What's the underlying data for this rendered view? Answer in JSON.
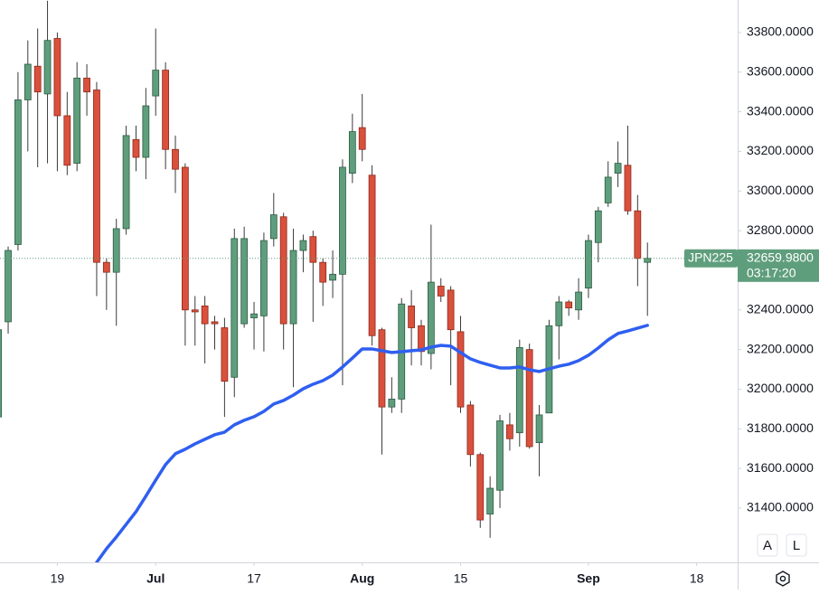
{
  "chart_data": {
    "type": "candlestick",
    "x": [
      -1,
      0,
      1,
      2,
      3,
      4,
      5,
      6,
      7,
      8,
      9,
      10,
      11,
      12,
      13,
      14,
      15,
      16,
      17,
      18,
      19,
      20,
      21,
      22,
      23,
      24,
      25,
      26,
      27,
      28,
      29,
      30,
      31,
      32,
      33,
      34,
      35,
      36,
      37,
      38,
      39,
      40,
      41,
      42,
      43,
      44,
      45,
      46,
      47,
      48,
      49,
      50,
      51,
      52,
      53,
      54,
      55,
      56,
      57,
      58,
      59,
      60,
      61,
      62,
      63,
      64,
      65
    ],
    "open": [
      31860,
      32340,
      32730,
      33460,
      33630,
      33490,
      33770,
      33380,
      33140,
      33570,
      33510,
      32640,
      32590,
      32810,
      33260,
      33170,
      33480,
      33610,
      33210,
      33120,
      32400,
      32420,
      32340,
      32310,
      32060,
      32330,
      32360,
      32370,
      32760,
      32870,
      32330,
      32700,
      32770,
      32640,
      32550,
      32580,
      33090,
      33320,
      33080,
      32300,
      31910,
      31950,
      32420,
      32320,
      32180,
      32520,
      32500,
      32290,
      31920,
      31670,
      31370,
      31490,
      31820,
      31780,
      32200,
      31730,
      31880,
      32320,
      32440,
      32400,
      32510,
      32740,
      32940,
      33090,
      33130,
      32900,
      32640
    ],
    "high": [
      32310,
      32720,
      33600,
      33760,
      33820,
      33960,
      33800,
      33500,
      33650,
      33640,
      33550,
      32660,
      32860,
      33330,
      33330,
      33520,
      33820,
      33650,
      33280,
      33140,
      32470,
      32470,
      32370,
      32360,
      32810,
      32820,
      32440,
      32790,
      32990,
      32890,
      32810,
      32780,
      32800,
      32660,
      32700,
      33160,
      33390,
      33490,
      33130,
      32310,
      32060,
      32460,
      32500,
      32350,
      32830,
      32560,
      32520,
      32370,
      31940,
      31680,
      31560,
      31870,
      31880,
      32250,
      32230,
      31920,
      32350,
      32470,
      32450,
      32560,
      32780,
      32920,
      33150,
      33250,
      33330,
      32980,
      32740
    ],
    "low": [
      31850,
      32280,
      32700,
      33200,
      33120,
      33140,
      33100,
      33080,
      33100,
      33380,
      32470,
      32400,
      32320,
      32780,
      33100,
      33060,
      33380,
      33110,
      32990,
      32220,
      32220,
      32130,
      32200,
      31860,
      31960,
      32310,
      32200,
      32190,
      32720,
      32200,
      32010,
      32590,
      32340,
      32420,
      32460,
      32020,
      33040,
      33150,
      32220,
      31670,
      31880,
      31880,
      32120,
      32120,
      32100,
      32440,
      32020,
      31880,
      31610,
      31300,
      31250,
      31400,
      31690,
      31710,
      31700,
      31560,
      31880,
      32150,
      32370,
      32350,
      32460,
      32640,
      32920,
      33020,
      32880,
      32520,
      32370
    ],
    "close": [
      32300,
      32700,
      33460,
      33640,
      33500,
      33760,
      33380,
      33130,
      33570,
      33500,
      32640,
      32590,
      32810,
      33280,
      33170,
      33430,
      33610,
      33210,
      33110,
      32400,
      32390,
      32330,
      32330,
      32040,
      32760,
      32760,
      32380,
      32750,
      32880,
      32330,
      32700,
      32750,
      32640,
      32540,
      32580,
      33120,
      33300,
      33210,
      32270,
      31910,
      31950,
      32430,
      32310,
      32190,
      32540,
      32470,
      32300,
      31910,
      31670,
      31340,
      31500,
      31840,
      31750,
      32210,
      31710,
      31870,
      32320,
      32440,
      32410,
      32490,
      32750,
      32900,
      33070,
      33140,
      32900,
      32660,
      32660
    ],
    "up_color": "#5f9e7c",
    "down_color": "#d9503c",
    "series": [
      {
        "color": "#2f5ff0",
        "values": [
          null,
          null,
          null,
          null,
          null,
          null,
          null,
          null,
          null,
          null,
          31126,
          31195,
          31254,
          31318,
          31382,
          31460,
          31541,
          31619,
          31674,
          31697,
          31724,
          31747,
          31770,
          31783,
          31820,
          31843,
          31861,
          31888,
          31925,
          31943,
          31970,
          32002,
          32025,
          32043,
          32071,
          32112,
          32157,
          32203,
          32203,
          32194,
          32185,
          32189,
          32194,
          32198,
          32212,
          32221,
          32217,
          32185,
          32153,
          32135,
          32121,
          32107,
          32107,
          32112,
          32098,
          32089,
          32103,
          32116,
          32126,
          32144,
          32171,
          32208,
          32249,
          32281,
          32294,
          32308,
          32322
        ]
      }
    ],
    "xlim": [
      -0.83,
      74.17
    ],
    "ylim": [
      31126,
      33964
    ],
    "xticks": [
      {
        "value": 5,
        "label": "19"
      },
      {
        "value": 15,
        "label": "Jul"
      },
      {
        "value": 25,
        "label": "17"
      },
      {
        "value": 36,
        "label": "Aug"
      },
      {
        "value": 46,
        "label": "15"
      },
      {
        "value": 59,
        "label": "Sep"
      },
      {
        "value": 70,
        "label": "18"
      }
    ],
    "yticks": [
      {
        "value": 31400,
        "label": "31400.0000"
      },
      {
        "value": 31600,
        "label": "31600.0000"
      },
      {
        "value": 31800,
        "label": "31800.0000"
      },
      {
        "value": 32000,
        "label": "32000.0000"
      },
      {
        "value": 32200,
        "label": "32200.0000"
      },
      {
        "value": 32400,
        "label": "32400.0000"
      },
      {
        "value": 32600,
        "label": "32600.0000"
      },
      {
        "value": 32800,
        "label": "32800.0000"
      },
      {
        "value": 33000,
        "label": "33000.0000"
      },
      {
        "value": 33200,
        "label": "33200.0000"
      },
      {
        "value": 33400,
        "label": "33400.0000"
      },
      {
        "value": 33600,
        "label": "33600.0000"
      },
      {
        "value": 33800,
        "label": "33800.0000"
      }
    ],
    "last_price": {
      "symbol": "JPN225",
      "value": 32659.98,
      "value_label": "32659.9800",
      "countdown": "03:17:20",
      "color": "#5f9e7c"
    }
  },
  "controls": [
    "A",
    "L"
  ]
}
